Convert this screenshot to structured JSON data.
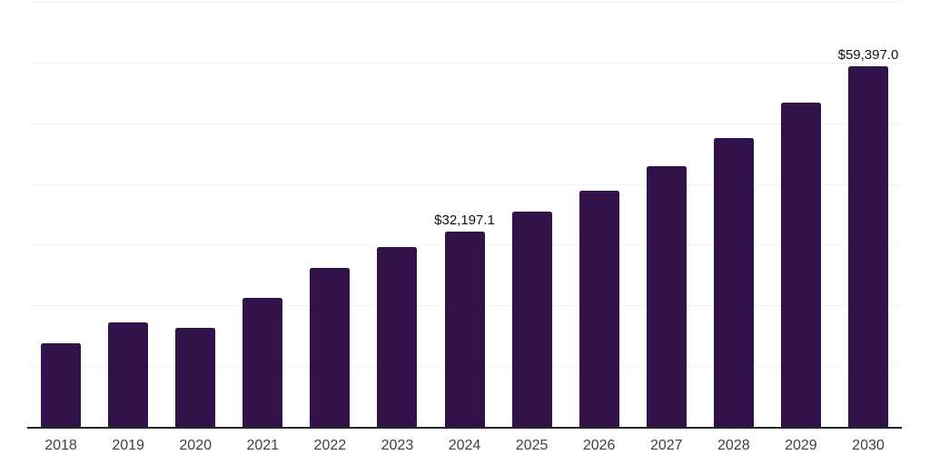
{
  "chart_data": {
    "type": "bar",
    "title": "",
    "xlabel": "",
    "ylabel": "",
    "categories": [
      "2018",
      "2019",
      "2020",
      "2021",
      "2022",
      "2023",
      "2024",
      "2025",
      "2026",
      "2027",
      "2028",
      "2029",
      "2030"
    ],
    "values": [
      13760,
      17200,
      16300,
      21240,
      26180,
      29620,
      32197.1,
      35450,
      38890,
      42930,
      47560,
      53400,
      59397.0
    ],
    "data_labels": {
      "2024": "$32,197.1",
      "2030": "$59,397.0"
    },
    "ylim": [
      0,
      70000
    ],
    "gridline_interval": 10000,
    "grid": "horizontal",
    "legend_position": "none",
    "colors": {
      "bar": "#321349",
      "axis_line": "#262626",
      "gridline": "#f2f2f2",
      "data_label_text": "#111111",
      "tick_label_text": "#404040",
      "background": "#ffffff"
    }
  }
}
